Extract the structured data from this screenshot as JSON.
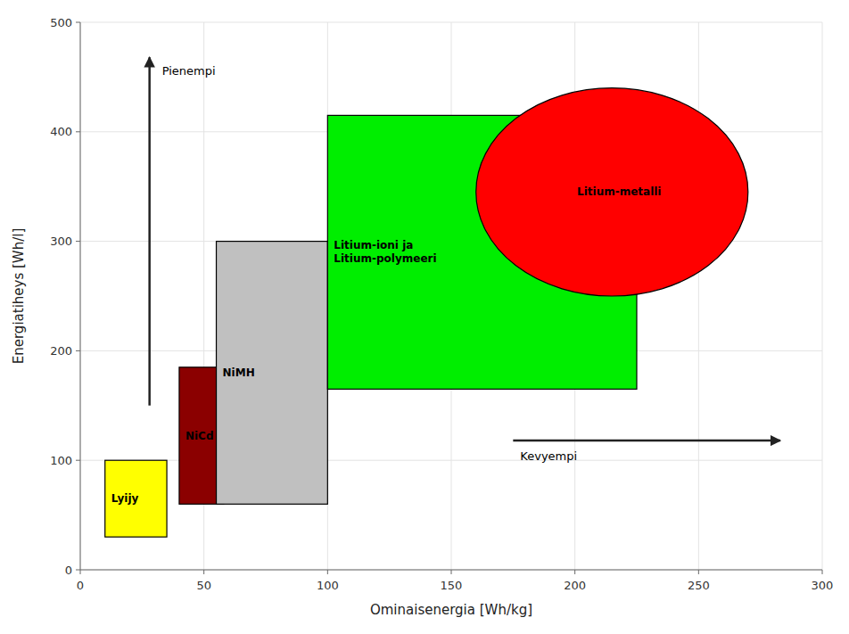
{
  "chart_data": {
    "type": "region",
    "xlabel": "Ominaisenergia [Wh/kg]",
    "ylabel": "Energiatiheys [Wh/l]",
    "xlim": [
      0,
      300
    ],
    "ylim": [
      0,
      500
    ],
    "xticks": [
      0,
      50,
      100,
      150,
      200,
      250,
      300
    ],
    "yticks": [
      0,
      100,
      200,
      300,
      400,
      500
    ],
    "grid": true,
    "series": [
      {
        "type": "rect",
        "label": "Lyijy",
        "color": "#ffff00",
        "x": 10,
        "y": 30,
        "width": 25,
        "height": 70
      },
      {
        "type": "rect",
        "label": "NiCd",
        "color": "#8b0000",
        "x": 40,
        "y": 60,
        "width": 18,
        "height": 125
      },
      {
        "type": "rect",
        "label": "NiMH",
        "color": "#c0c0c0",
        "x": 55,
        "y": 60,
        "width": 45,
        "height": 240
      },
      {
        "type": "rect",
        "label": "Litium-ioni ja\nLitium-polymeeri",
        "color": "#00ee00",
        "x": 100,
        "y": 165,
        "width": 125,
        "height": 250
      },
      {
        "type": "ellipse",
        "label": "Litium-metalli",
        "color": "#ff0000",
        "cx": 215,
        "cy": 345,
        "rx": 55,
        "ry": 95
      }
    ],
    "annotations": [
      {
        "type": "arrow",
        "text": "Pienempi",
        "x": [
          28,
          28
        ],
        "y": [
          150,
          468
        ]
      },
      {
        "type": "arrow",
        "text": "Kevyempi",
        "x": [
          175,
          283
        ],
        "y": [
          118,
          118
        ]
      }
    ]
  }
}
